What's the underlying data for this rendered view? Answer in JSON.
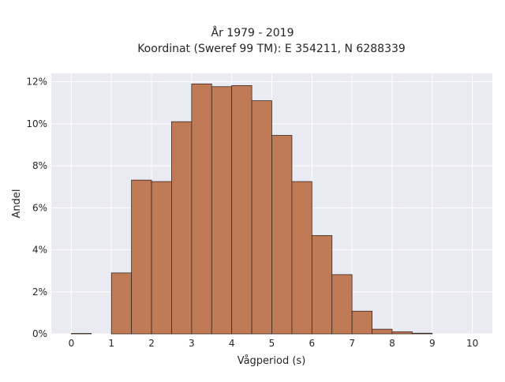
{
  "chart_data": {
    "type": "bar",
    "title_line1": "År 1979 - 2019",
    "title_line2": "Koordinat (Sweref 99 TM): E 354211, N 6288339",
    "xlabel": "Vågperiod (s)",
    "ylabel": "Andel",
    "bin_width": 0.5,
    "bins_start": [
      0.0,
      0.5,
      1.0,
      1.5,
      2.0,
      2.5,
      3.0,
      3.5,
      4.0,
      4.5,
      5.0,
      5.5,
      6.0,
      6.5,
      7.0,
      7.5,
      8.0,
      8.5,
      9.0,
      9.5
    ],
    "values": [
      0.02,
      0.0,
      2.9,
      7.32,
      7.25,
      10.1,
      11.9,
      11.77,
      11.82,
      11.1,
      9.45,
      7.25,
      4.68,
      2.82,
      1.08,
      0.22,
      0.1,
      0.03,
      0.0,
      0.0
    ],
    "xlim": [
      -0.5,
      10.5
    ],
    "ylim": [
      0,
      12.4
    ],
    "xticks": [
      0,
      1,
      2,
      3,
      4,
      5,
      6,
      7,
      8,
      9,
      10
    ],
    "xtick_labels": [
      "0",
      "1",
      "2",
      "3",
      "4",
      "5",
      "6",
      "7",
      "8",
      "9",
      "10"
    ],
    "yticks": [
      0,
      2,
      4,
      6,
      8,
      10,
      12
    ],
    "ytick_labels": [
      "0%",
      "2%",
      "4%",
      "6%",
      "8%",
      "10%",
      "12%"
    ],
    "grid": true,
    "colors": {
      "bar_fill": "#c07a55",
      "bar_edge": "#3a2a20",
      "plot_bg": "#eaeaf2",
      "grid": "#ffffff"
    }
  }
}
